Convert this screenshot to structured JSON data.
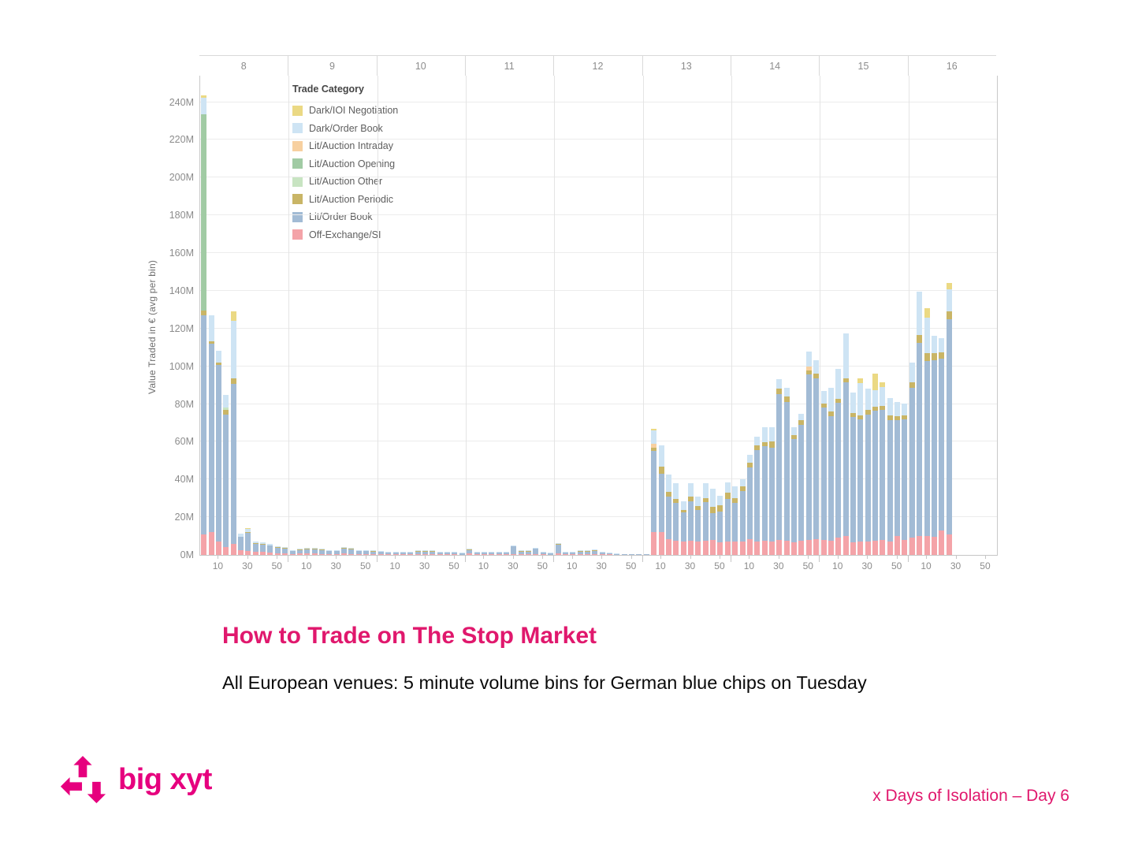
{
  "slide": {
    "title": "How to Trade on The Stop Market",
    "subtitle": "All European venues: 5 minute volume bins for German blue chips on Tuesday",
    "footer": "x Days of Isolation – Day 6",
    "logo_text": "big xyt"
  },
  "colors": {
    "title_pink": "#e0186d",
    "logo_pink": "#e6007e",
    "axis_text": "#8c8c8c",
    "grid": "#ececec",
    "panel_divider": "#e4e4e4",
    "axis_line": "#c6c6c6"
  },
  "chart_data": {
    "type": "bar",
    "stacked": true,
    "title": "",
    "ylabel": "Value Traded in € (avg per bin)",
    "units": "millions of EUR per 5-minute bin",
    "y_ticks": [
      "0M",
      "20M",
      "40M",
      "60M",
      "80M",
      "100M",
      "120M",
      "140M",
      "160M",
      "180M",
      "200M",
      "220M",
      "240M"
    ],
    "y_max_m": 254,
    "grid": true,
    "hour_labels": [
      "8",
      "9",
      "10",
      "11",
      "12",
      "13",
      "14",
      "15",
      "16"
    ],
    "minute_tick_labels": [
      "10",
      "30",
      "50"
    ],
    "x_structure": "9 hourly panels (hours 8-16), each divided into 5-minute bins labelled 10/30/50",
    "legend": {
      "title": "Trade Category",
      "position": "top-left inside plot",
      "items": [
        {
          "key": "ioi",
          "label": "Dark/IOI Negotiation",
          "color": "#ebd984"
        },
        {
          "key": "dob",
          "label": "Dark/Order Book",
          "color": "#cee4f4"
        },
        {
          "key": "intr",
          "label": "Lit/Auction Intraday",
          "color": "#f7d0a0"
        },
        {
          "key": "opn",
          "label": "Lit/Auction Opening",
          "color": "#a1cba4"
        },
        {
          "key": "oth",
          "label": "Lit/Auction Other",
          "color": "#c8e4c2"
        },
        {
          "key": "per",
          "label": "Lit/Auction Periodic",
          "color": "#c9b566"
        },
        {
          "key": "lit",
          "label": "Lit/Order Book",
          "color": "#a2bbd5"
        },
        {
          "key": "off",
          "label": "Off-Exchange/SI",
          "color": "#f4a3a8"
        }
      ]
    },
    "series_order_bottom_to_top": [
      "off",
      "lit",
      "per",
      "oth",
      "opn",
      "intr",
      "dob",
      "ioi"
    ],
    "series_colors": {
      "off": "#f4a3a8",
      "lit": "#a2bbd5",
      "per": "#c9b566",
      "oth": "#c8e4c2",
      "opn": "#a1cba4",
      "intr": "#f7d0a0",
      "dob": "#cee4f4",
      "ioi": "#ebd984"
    },
    "series_names": {
      "off": "Off-Exchange/SI",
      "lit": "Lit/Order Book",
      "per": "Lit/Auction Periodic",
      "oth": "Lit/Auction Other",
      "opn": "Lit/Auction Opening",
      "intr": "Lit/Auction Intraday",
      "dob": "Dark/Order Book",
      "ioi": "Dark/IOI Negotiation"
    },
    "bin_format": "[hour, minute, off, lit, per, oth, opn, intr, dob, ioi] values in millions EUR",
    "bins": [
      [
        8,
        0,
        11,
        116,
        2.5,
        0,
        104,
        0,
        9,
        1
      ],
      [
        8,
        5,
        12,
        100,
        1.2,
        0,
        0,
        0,
        14,
        0
      ],
      [
        8,
        10,
        7,
        93.5,
        1.5,
        0,
        0,
        0,
        6,
        0
      ],
      [
        8,
        15,
        4,
        70.5,
        2.5,
        1,
        0,
        0,
        7,
        0
      ],
      [
        8,
        20,
        6,
        84.5,
        3,
        0,
        0,
        0,
        30.5,
        5
      ],
      [
        8,
        25,
        2.5,
        7,
        0.3,
        0,
        0,
        0,
        1.5,
        0
      ],
      [
        8,
        30,
        2,
        9.5,
        0.5,
        0,
        0,
        0,
        2,
        0.3
      ],
      [
        8,
        35,
        1.5,
        4.5,
        0.2,
        0,
        0,
        0,
        0.8,
        0
      ],
      [
        8,
        40,
        1.5,
        4,
        0.2,
        0,
        0,
        0,
        0.8,
        0
      ],
      [
        8,
        45,
        1.2,
        3.8,
        0.2,
        0,
        0,
        0,
        0.8,
        0
      ],
      [
        8,
        50,
        1,
        2.8,
        0.2,
        0,
        0,
        0,
        0.5,
        0
      ],
      [
        8,
        55,
        0.8,
        2.6,
        0.2,
        0,
        0,
        0,
        0.4,
        0
      ],
      [
        9,
        0,
        0.6,
        1.6,
        0.1,
        0,
        0,
        0,
        0.2,
        0
      ],
      [
        9,
        5,
        0.7,
        2,
        0.1,
        0,
        0,
        0,
        0.2,
        0
      ],
      [
        9,
        10,
        0.8,
        2.3,
        0.2,
        0,
        0,
        0,
        0.2,
        0
      ],
      [
        9,
        15,
        0.7,
        2.3,
        0.2,
        0,
        0,
        0,
        0.3,
        0
      ],
      [
        9,
        20,
        0.6,
        2,
        0.2,
        0,
        0,
        0,
        0.2,
        0
      ],
      [
        9,
        25,
        0.5,
        1.7,
        0.1,
        0,
        0,
        0,
        0.2,
        0
      ],
      [
        9,
        30,
        0.5,
        1.7,
        0.1,
        0,
        0,
        0,
        0.2,
        0
      ],
      [
        9,
        35,
        0.7,
        2.8,
        0.2,
        0,
        0,
        0,
        0.3,
        0
      ],
      [
        9,
        40,
        0.6,
        2.4,
        0.2,
        0,
        0,
        0,
        0.3,
        0
      ],
      [
        9,
        45,
        0.5,
        1.7,
        0.1,
        0,
        0,
        0,
        0.2,
        0
      ],
      [
        9,
        50,
        0.5,
        1.6,
        0.2,
        0,
        0,
        0,
        0.2,
        0
      ],
      [
        9,
        55,
        0.4,
        1.4,
        0.1,
        0,
        0,
        0,
        0.1,
        0
      ],
      [
        10,
        0,
        0.4,
        1.3,
        0.1,
        0,
        0,
        0,
        0.2,
        0
      ],
      [
        10,
        5,
        0.3,
        1,
        0.1,
        0,
        0,
        0,
        0.1,
        0
      ],
      [
        10,
        10,
        0.3,
        1,
        0.1,
        0,
        0,
        0,
        0.1,
        0
      ],
      [
        10,
        15,
        0.3,
        0.8,
        0.05,
        0,
        0,
        0,
        0.05,
        0
      ],
      [
        10,
        20,
        0.3,
        0.9,
        0.2,
        0,
        0,
        0,
        0.1,
        0
      ],
      [
        10,
        25,
        0.4,
        1.2,
        0.3,
        0,
        0,
        0,
        0.1,
        0
      ],
      [
        10,
        30,
        0.4,
        1.4,
        0.1,
        0,
        0,
        0,
        0.1,
        0
      ],
      [
        10,
        35,
        0.4,
        1.2,
        0.3,
        0,
        0,
        0,
        0.1,
        0
      ],
      [
        10,
        40,
        0.3,
        0.8,
        0.05,
        0,
        0,
        0,
        0.05,
        0
      ],
      [
        10,
        45,
        0.3,
        1,
        0.1,
        0,
        0,
        0,
        0.1,
        0
      ],
      [
        10,
        50,
        0.3,
        0.8,
        0.05,
        0,
        0,
        0,
        0.05,
        0
      ],
      [
        10,
        55,
        0.2,
        0.7,
        0.05,
        0,
        0,
        0,
        0.05,
        0
      ],
      [
        11,
        0,
        1,
        1.7,
        0.1,
        0,
        0,
        0,
        0.2,
        0
      ],
      [
        11,
        5,
        0.4,
        1,
        0.05,
        0,
        0,
        0,
        0.05,
        0
      ],
      [
        11,
        10,
        0.3,
        0.8,
        0.05,
        0,
        0,
        0,
        0.05,
        0
      ],
      [
        11,
        15,
        0.3,
        0.8,
        0.05,
        0,
        0,
        0,
        0.05,
        0
      ],
      [
        11,
        20,
        0.4,
        1,
        0.05,
        0,
        0,
        0,
        0.05,
        0
      ],
      [
        11,
        25,
        0.3,
        0.8,
        0.05,
        0,
        0,
        0,
        0.05,
        0
      ],
      [
        11,
        30,
        0.6,
        4,
        0.1,
        0,
        0,
        0,
        0.3,
        0
      ],
      [
        11,
        35,
        0.4,
        1.4,
        0.1,
        0,
        0,
        0,
        0.1,
        0
      ],
      [
        11,
        40,
        0.4,
        1.4,
        0.1,
        0,
        0,
        0,
        0.1,
        0
      ],
      [
        11,
        45,
        0.5,
        2.7,
        0.1,
        0,
        0,
        0,
        0.2,
        0
      ],
      [
        11,
        50,
        0.3,
        0.8,
        0.05,
        0,
        0,
        0,
        0.05,
        0
      ],
      [
        11,
        55,
        0.2,
        0.7,
        0.05,
        0,
        0,
        0,
        0.05,
        0
      ],
      [
        12,
        0,
        0.8,
        4.7,
        0.2,
        0,
        0,
        0,
        0.3,
        0
      ],
      [
        12,
        5,
        0.4,
        1,
        0.05,
        0,
        0,
        0,
        0.05,
        0
      ],
      [
        12,
        10,
        0.3,
        0.8,
        0.05,
        0,
        0,
        0,
        0.05,
        0
      ],
      [
        12,
        15,
        0.4,
        1.4,
        0.1,
        0,
        0,
        0,
        0.1,
        0
      ],
      [
        12,
        20,
        0.4,
        1.4,
        0.1,
        0,
        0,
        0,
        0.1,
        0
      ],
      [
        12,
        25,
        0.5,
        1.5,
        0.4,
        0,
        0,
        0,
        0.1,
        0
      ],
      [
        12,
        30,
        0.4,
        1,
        0.05,
        0,
        0,
        0,
        0.05,
        0
      ],
      [
        12,
        35,
        0.3,
        0.6,
        0.05,
        0,
        0,
        0,
        0.05,
        0
      ],
      [
        12,
        40,
        0.1,
        0.25,
        0,
        0,
        0,
        0,
        0.05,
        0
      ],
      [
        12,
        45,
        0.1,
        0.2,
        0,
        0,
        0,
        0,
        0,
        0
      ],
      [
        12,
        50,
        0.1,
        0.2,
        0,
        0,
        0,
        0,
        0,
        0
      ],
      [
        12,
        55,
        0.1,
        0.2,
        0,
        0,
        0,
        0,
        0,
        0
      ],
      [
        13,
        0,
        0.2,
        0.4,
        0,
        0,
        0,
        0,
        0,
        0
      ],
      [
        13,
        5,
        12,
        43,
        2,
        0,
        0,
        2,
        7,
        1
      ],
      [
        13,
        10,
        12,
        31,
        4,
        0,
        0,
        0,
        11,
        0
      ],
      [
        13,
        15,
        8.5,
        22.5,
        2.5,
        0,
        0,
        0,
        9,
        0
      ],
      [
        13,
        20,
        7.5,
        20,
        2,
        0,
        0,
        0,
        8.5,
        0
      ],
      [
        13,
        25,
        7,
        15.5,
        1.5,
        0,
        0,
        0,
        4.5,
        0
      ],
      [
        13,
        30,
        7.5,
        21,
        2.5,
        0,
        0,
        0,
        7,
        0
      ],
      [
        13,
        35,
        7,
        17,
        2,
        0,
        0,
        0,
        5,
        0
      ],
      [
        13,
        40,
        7.5,
        20.5,
        2,
        0,
        0,
        0,
        8,
        0
      ],
      [
        13,
        45,
        8,
        14,
        3.5,
        0,
        0,
        0,
        9.5,
        0
      ],
      [
        13,
        50,
        6.5,
        16.5,
        3.5,
        0,
        0,
        0,
        5,
        0
      ],
      [
        13,
        55,
        7,
        22.5,
        3.5,
        0,
        0,
        0,
        5.5,
        0
      ],
      [
        14,
        0,
        7,
        20.5,
        2.7,
        0,
        0,
        0,
        6,
        0
      ],
      [
        14,
        5,
        7,
        26.7,
        2.8,
        0,
        0,
        0,
        3.5,
        0
      ],
      [
        14,
        10,
        8.5,
        37.8,
        2.7,
        0,
        0,
        0,
        4,
        0
      ],
      [
        14,
        15,
        7,
        48.7,
        2.4,
        0,
        0,
        0,
        4.6,
        0
      ],
      [
        14,
        20,
        7.5,
        50,
        2.1,
        0,
        0,
        0,
        8,
        0
      ],
      [
        14,
        25,
        7,
        50,
        3,
        0,
        0,
        0,
        7.5,
        0
      ],
      [
        14,
        30,
        8,
        77.3,
        2.7,
        0,
        0,
        0,
        5,
        0
      ],
      [
        14,
        35,
        7.5,
        73.6,
        2.8,
        0,
        0,
        0,
        4.5,
        0
      ],
      [
        14,
        40,
        6.5,
        55,
        2.1,
        0,
        0,
        0,
        4,
        0
      ],
      [
        14,
        45,
        7.5,
        61.4,
        2.5,
        0,
        0,
        0,
        3.2,
        0
      ],
      [
        14,
        50,
        8,
        87.7,
        2,
        0,
        0,
        2.2,
        7.7,
        0
      ],
      [
        14,
        55,
        8.5,
        85,
        2.8,
        0,
        0,
        0,
        7,
        0
      ],
      [
        15,
        0,
        8,
        70.3,
        2.1,
        0,
        0,
        0,
        6.6,
        0
      ],
      [
        15,
        5,
        7.5,
        66,
        2.4,
        0,
        0,
        0,
        12.5,
        0
      ],
      [
        15,
        10,
        9,
        71.8,
        2,
        0,
        0,
        0,
        15.7,
        0
      ],
      [
        15,
        15,
        10,
        81.6,
        2.1,
        0,
        0,
        0,
        23.7,
        0
      ],
      [
        15,
        20,
        6.5,
        66.5,
        2.3,
        0,
        0,
        0,
        10.7,
        0
      ],
      [
        15,
        25,
        7,
        65,
        2,
        0,
        0,
        0,
        17,
        2.8
      ],
      [
        15,
        30,
        7,
        67.2,
        2.7,
        0,
        0,
        0,
        11.2,
        0
      ],
      [
        15,
        35,
        7.5,
        69,
        2.1,
        0,
        0,
        0,
        8.8,
        8.6
      ],
      [
        15,
        40,
        8,
        69,
        2.1,
        0,
        0,
        0,
        9.7,
        2.8
      ],
      [
        15,
        45,
        7,
        64.6,
        2.5,
        0,
        0,
        0,
        9.1,
        0
      ],
      [
        15,
        50,
        10,
        61.4,
        2,
        0,
        0,
        0,
        7.7,
        0
      ],
      [
        15,
        55,
        8,
        64,
        2.1,
        0,
        0,
        0,
        6.3,
        0
      ],
      [
        16,
        0,
        9,
        79.5,
        3.1,
        0,
        0,
        0,
        10.4,
        0
      ],
      [
        16,
        5,
        10,
        102.5,
        4.2,
        0,
        0,
        0,
        23,
        0
      ],
      [
        16,
        10,
        10,
        92.7,
        4.2,
        0,
        0,
        0,
        18.7,
        5
      ],
      [
        16,
        15,
        9.5,
        93.9,
        3.5,
        0,
        0,
        0,
        9.1,
        0
      ],
      [
        16,
        20,
        13,
        91.1,
        3.1,
        0,
        0,
        0,
        7.8,
        0
      ],
      [
        16,
        25,
        11,
        114,
        4.2,
        0,
        0,
        0,
        11.8,
        3
      ]
    ]
  }
}
